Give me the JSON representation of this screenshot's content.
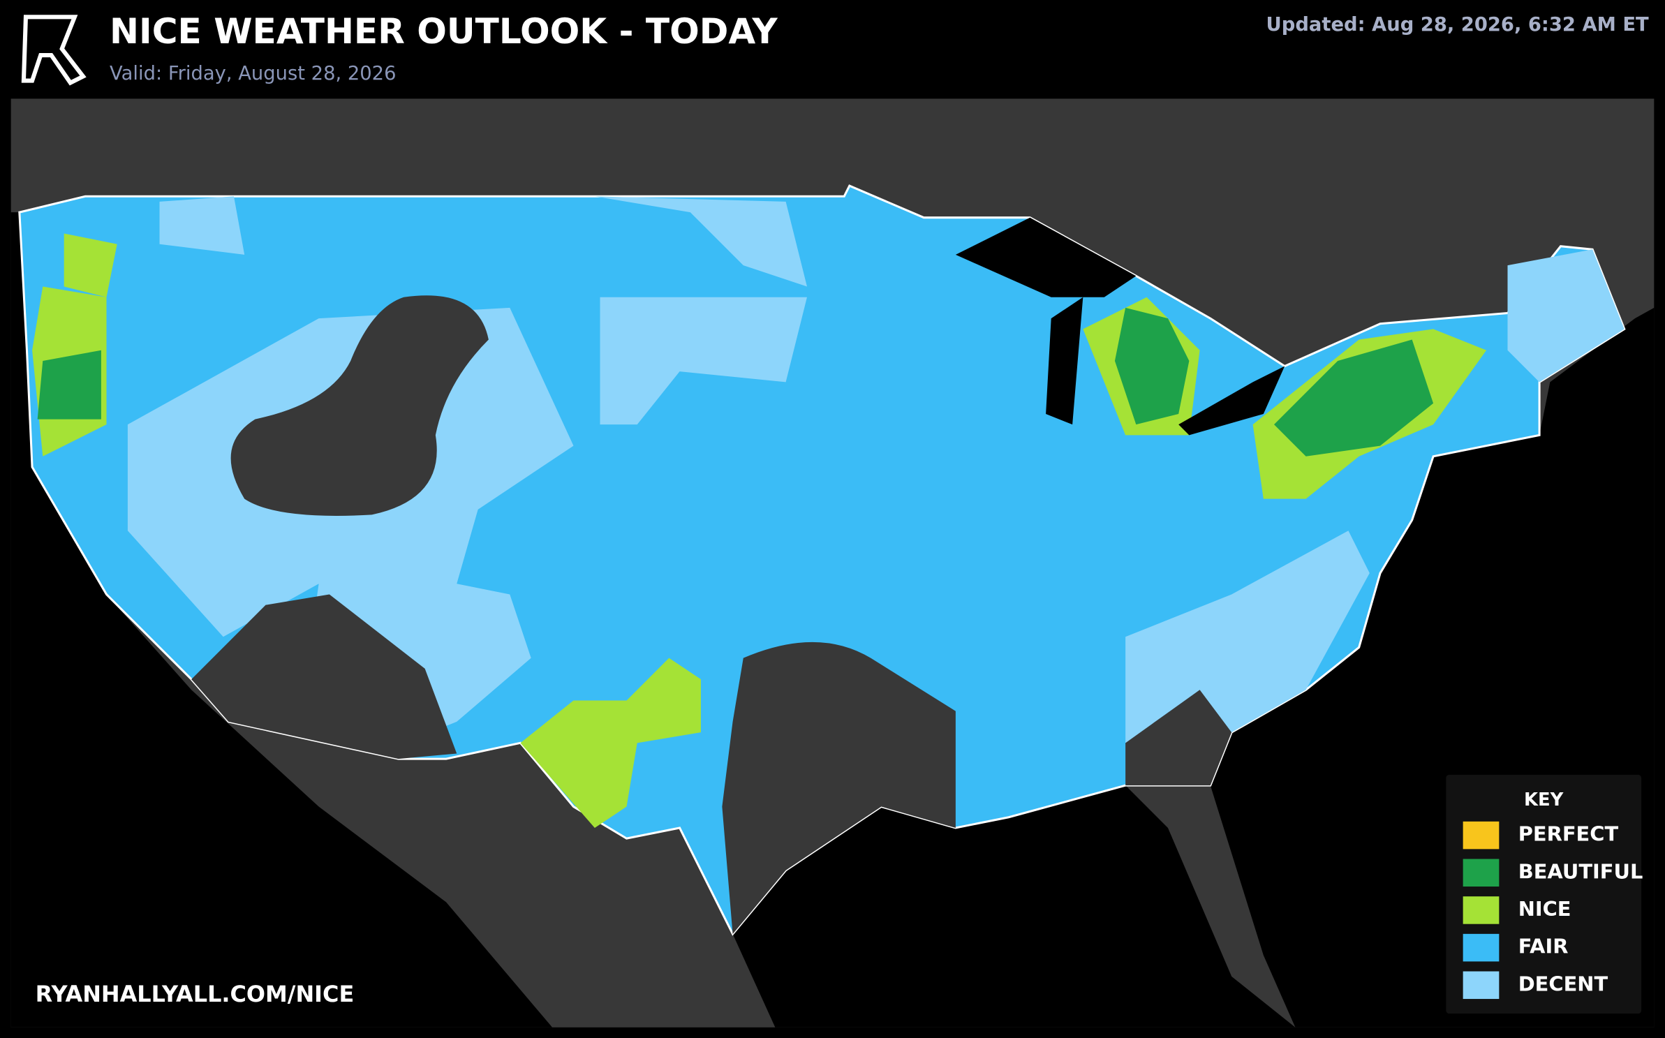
{
  "header": {
    "title": "NICE WEATHER OUTLOOK - TODAY",
    "valid": "Valid: Friday, August 28, 2026",
    "updated": "Updated: Aug 28, 2026, 6:32 AM ET"
  },
  "legend": {
    "title": "KEY",
    "items": [
      {
        "label": "PERFECT",
        "color": "#f8c51c"
      },
      {
        "label": "BEAUTIFUL",
        "color": "#1ea24a"
      },
      {
        "label": "NICE",
        "color": "#a5e236"
      },
      {
        "label": "FAIR",
        "color": "#3bbcf6"
      },
      {
        "label": "DECENT",
        "color": "#8dd5fb"
      }
    ]
  },
  "footer": "RYANHALLYALL.COM/NICE"
}
